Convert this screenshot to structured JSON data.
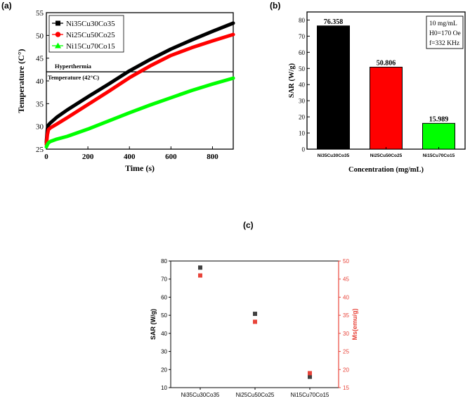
{
  "panels": {
    "a": "(a)",
    "b": "(b)",
    "c": "(c)"
  },
  "chart_data": [
    {
      "type": "line",
      "id": "a",
      "xlabel": "Time (s)",
      "ylabel": "Temperature (C°)",
      "xlim": [
        0,
        900
      ],
      "ylim": [
        25,
        55
      ],
      "xticks": [
        0,
        200,
        400,
        600,
        800
      ],
      "yticks": [
        25,
        30,
        35,
        40,
        45,
        50,
        55
      ],
      "legend_position": "top-left",
      "threshold": {
        "value": 42,
        "label_top": "Hyperthermia",
        "label_bottom": "Temperature (42°C)"
      },
      "series": [
        {
          "name": "Ni35Cu30Co35",
          "color": "#000000",
          "marker": "square",
          "x": [
            0,
            5,
            10,
            20,
            50,
            100,
            200,
            300,
            400,
            500,
            600,
            700,
            800,
            900
          ],
          "y": [
            26.5,
            29.5,
            30.3,
            30.8,
            32.0,
            33.6,
            36.5,
            39.3,
            42.2,
            44.7,
            47.0,
            49.0,
            50.9,
            52.7
          ]
        },
        {
          "name": "Ni25Cu50Co25",
          "color": "#ff0000",
          "marker": "circle",
          "x": [
            0,
            5,
            10,
            20,
            50,
            100,
            200,
            300,
            400,
            500,
            600,
            700,
            800,
            900
          ],
          "y": [
            26.0,
            28.2,
            29.3,
            29.7,
            30.5,
            31.9,
            34.8,
            37.7,
            40.7,
            43.3,
            45.6,
            47.3,
            48.8,
            50.2
          ]
        },
        {
          "name": "Ni15Cu70Co15",
          "color": "#00ff00",
          "marker": "triangle",
          "x": [
            0,
            5,
            10,
            20,
            50,
            100,
            200,
            300,
            400,
            500,
            600,
            700,
            800,
            900
          ],
          "y": [
            25.5,
            26.0,
            26.4,
            26.7,
            27.2,
            27.8,
            29.4,
            31.2,
            33.0,
            34.7,
            36.3,
            37.9,
            39.3,
            40.6
          ]
        }
      ]
    },
    {
      "type": "bar",
      "id": "b",
      "categories": [
        "Ni35Cu30Co35",
        "Ni25Cu50Co25",
        "Ni15Cu70Co15"
      ],
      "values": [
        76.358,
        50.806,
        15.989
      ],
      "value_labels": [
        "76.358",
        "50.806",
        "15.989"
      ],
      "colors": [
        "#000000",
        "#ff0000",
        "#00ff00"
      ],
      "xlabel": "Concentration (mg/mL)",
      "ylabel": "SAR (W/g)",
      "ylim": [
        0,
        85
      ],
      "yticks": [
        0,
        10,
        20,
        30,
        40,
        50,
        60,
        70,
        80
      ],
      "annotation": [
        "10 mg/mL",
        "H0=170 Oe",
        "f=332 KHz"
      ]
    },
    {
      "type": "scatter",
      "id": "c",
      "categories": [
        "Ni35Cu30Co35",
        "Ni25Cu50Co25",
        "Ni15Cu70Co15"
      ],
      "ylabel": "SAR (W/g)",
      "y2label": "Ms(emu/g)",
      "ylim": [
        10,
        80
      ],
      "yticks": [
        10,
        20,
        30,
        40,
        50,
        60,
        70,
        80
      ],
      "y2lim": [
        15,
        50
      ],
      "y2ticks": [
        15,
        20,
        25,
        30,
        35,
        40,
        45,
        50
      ],
      "series": [
        {
          "name": "SAR",
          "axis": "left",
          "color": "#404040",
          "values": [
            76.358,
            50.806,
            15.989
          ]
        },
        {
          "name": "Ms",
          "axis": "right",
          "color": "#e8443a",
          "values": [
            46.0,
            33.2,
            19.0
          ]
        }
      ]
    }
  ]
}
